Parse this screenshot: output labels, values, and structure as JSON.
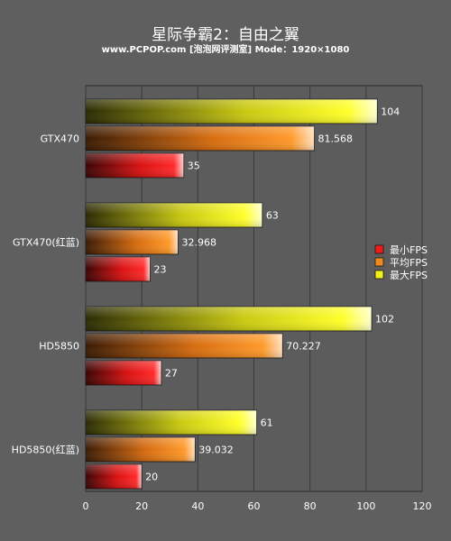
{
  "chart_data": {
    "type": "bar",
    "orientation": "horizontal",
    "title": "星际争霸2：自由之翼",
    "subtitle": "www.PCPOP.com [泡泡网评测室] Mode：1920×1080",
    "categories": [
      "GTX470",
      "GTX470(红蓝)",
      "HD5850",
      "HD5850(红蓝)"
    ],
    "series": [
      {
        "name": "最大FPS",
        "values": [
          104,
          63,
          102,
          61
        ],
        "value_labels": [
          "104",
          "63",
          "102",
          "61"
        ],
        "color": "#f2f21a"
      },
      {
        "name": "平均FPS",
        "values": [
          81.568,
          32.968,
          70.227,
          39.032
        ],
        "value_labels": [
          "81.568",
          "32.968",
          "70.227",
          "39.032"
        ],
        "color": "#f08a1e"
      },
      {
        "name": "最小FPS",
        "values": [
          35,
          23,
          27,
          20
        ],
        "value_labels": [
          "35",
          "23",
          "27",
          "20"
        ],
        "color": "#ee1b1b"
      }
    ],
    "legend_order": [
      "最小FPS",
      "平均FPS",
      "最大FPS"
    ],
    "xlim": [
      0,
      120
    ],
    "xticks": [
      "0",
      "20",
      "40",
      "60",
      "80",
      "100",
      "120"
    ],
    "grid": true,
    "legend_position": "right"
  }
}
